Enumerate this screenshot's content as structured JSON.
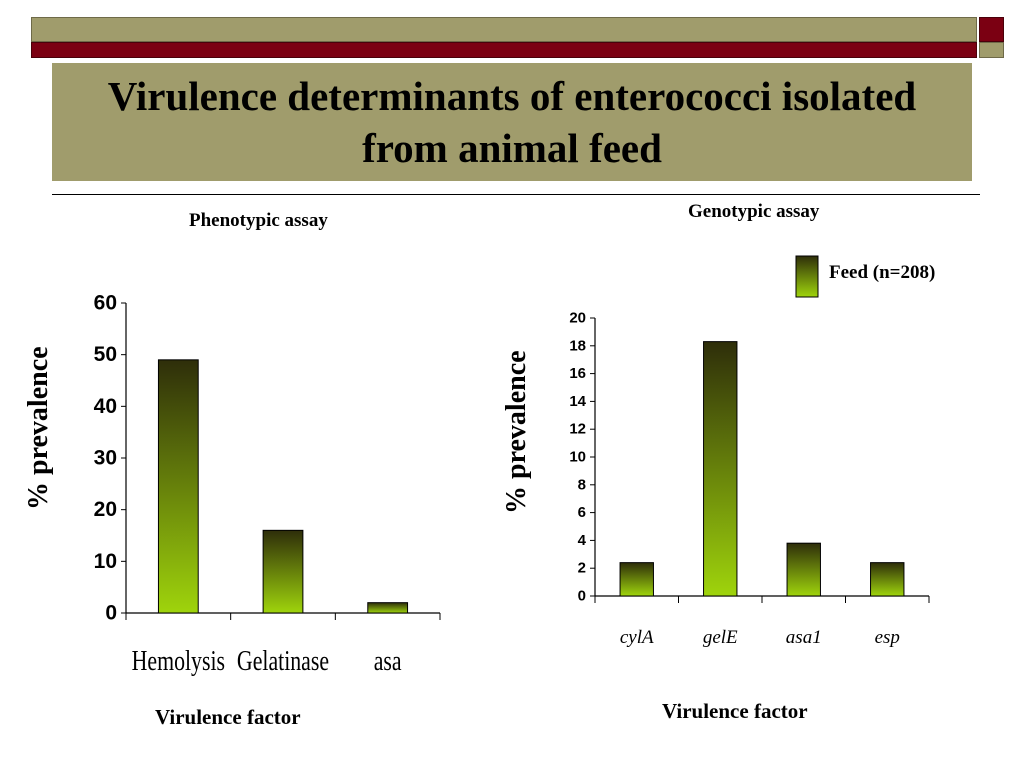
{
  "slide": {
    "title": "Virulence determinants of enterococci isolated from animal feed"
  },
  "colors": {
    "olive": "#a09c6c",
    "maroon": "#7b0012",
    "bar_top": "#2e2e0a",
    "bar_bottom": "#9fd40c"
  },
  "legend": {
    "label": "Feed (n=208)"
  },
  "chart_data": [
    {
      "type": "bar",
      "title": "Phenotypic assay",
      "xlabel": "Virulence factor",
      "ylabel": "%   prevalence",
      "categories": [
        "Hemolysis",
        "Gelatinase",
        "asa"
      ],
      "values": [
        49,
        16,
        2
      ],
      "ylim": [
        0,
        60
      ],
      "yticks": [
        0,
        10,
        20,
        30,
        40,
        50,
        60
      ],
      "grid": false
    },
    {
      "type": "bar",
      "title": "Genotypic assay",
      "xlabel": "Virulence factor",
      "ylabel": "%   prevalence",
      "categories": [
        "cylA",
        "gelE",
        "asa1",
        "esp"
      ],
      "values": [
        2.4,
        18.3,
        3.8,
        2.4
      ],
      "ylim": [
        0,
        20
      ],
      "yticks": [
        0,
        2,
        4,
        6,
        8,
        10,
        12,
        14,
        16,
        18,
        20
      ],
      "category_style": "italic",
      "series": [
        {
          "name": "Feed (n=208)",
          "values": [
            2.4,
            18.3,
            3.8,
            2.4
          ]
        }
      ],
      "legend_position": "top-right",
      "grid": false
    }
  ]
}
